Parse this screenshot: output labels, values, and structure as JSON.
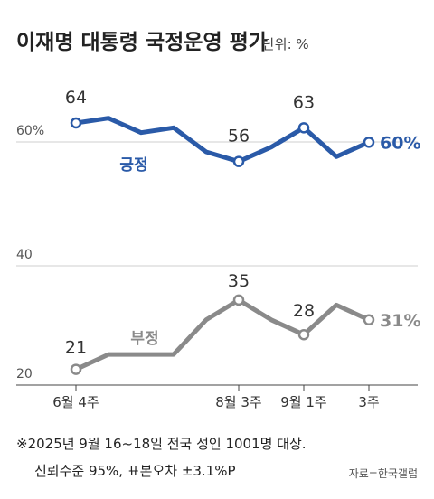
{
  "chart_data": {
    "type": "line",
    "title": "이재명 대통령 국정운영 평가",
    "unit": "단위: %",
    "yticks": [
      "60%",
      "40",
      "20"
    ],
    "x_tick_labels": [
      {
        "index": 0,
        "label": "6월 4주"
      },
      {
        "index": 5,
        "label": "8월 3주"
      },
      {
        "index": 7,
        "label": "9월 1주"
      },
      {
        "index": 9,
        "label": "3주"
      }
    ],
    "series": [
      {
        "name": "긍정",
        "color": "#2a5aa8",
        "values": [
          64,
          65,
          62,
          63,
          58,
          56,
          59,
          63,
          57,
          60
        ],
        "labels": [
          {
            "index": 0,
            "text": "64"
          },
          {
            "index": 5,
            "text": "56"
          },
          {
            "index": 7,
            "text": "63"
          },
          {
            "index": 9,
            "text": "60%"
          }
        ]
      },
      {
        "name": "부정",
        "color": "#8a8a8a",
        "values": [
          21,
          24,
          24,
          24,
          31,
          35,
          31,
          28,
          34,
          31
        ],
        "labels": [
          {
            "index": 0,
            "text": "21"
          },
          {
            "index": 5,
            "text": "35"
          },
          {
            "index": 7,
            "text": "28"
          },
          {
            "index": 9,
            "text": "31%"
          }
        ]
      }
    ],
    "note_lines": [
      "※2025년 9월 16~18일 전국 성인 1001명 대상.",
      "신뢰수준 95%, 표본오차 ±3.1%P"
    ],
    "source": "자료=한국갤럽"
  }
}
